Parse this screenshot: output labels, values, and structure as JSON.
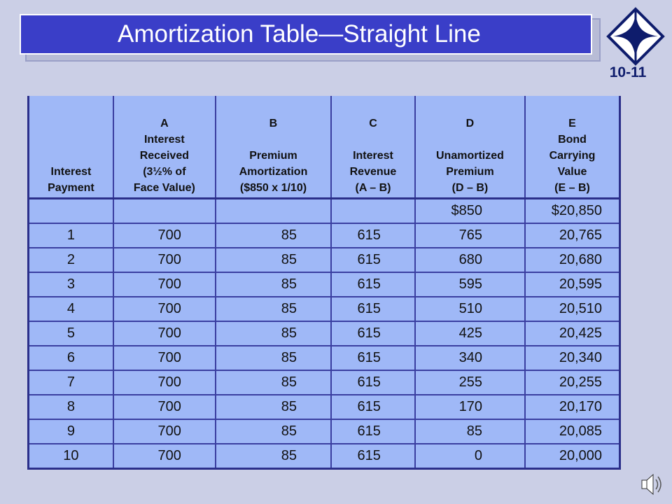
{
  "title": "Amortization Table—Straight Line",
  "slide_number": "10-11",
  "table": {
    "columns": [
      {
        "lines": [
          "",
          "",
          "",
          "Interest",
          "Payment"
        ]
      },
      {
        "lines": [
          "A",
          "Interest",
          "Received",
          "(3½% of",
          "Face Value)"
        ]
      },
      {
        "lines": [
          "B",
          "",
          "Premium",
          "Amortization",
          "($850 x 1/10)"
        ]
      },
      {
        "lines": [
          "C",
          "",
          "Interest",
          "Revenue",
          "(A – B)"
        ]
      },
      {
        "lines": [
          "D",
          "",
          "Unamortized",
          "Premium",
          "(D – B)"
        ]
      },
      {
        "lines": [
          "E",
          "Bond",
          "Carrying",
          "Value",
          "(E – B)"
        ]
      }
    ],
    "rows": [
      [
        "",
        "",
        "",
        "",
        "$850",
        "$20,850"
      ],
      [
        "1",
        "700",
        "85",
        "615",
        "765",
        "20,765"
      ],
      [
        "2",
        "700",
        "85",
        "615",
        "680",
        "20,680"
      ],
      [
        "3",
        "700",
        "85",
        "615",
        "595",
        "20,595"
      ],
      [
        "4",
        "700",
        "85",
        "615",
        "510",
        "20,510"
      ],
      [
        "5",
        "700",
        "85",
        "615",
        "425",
        "20,425"
      ],
      [
        "6",
        "700",
        "85",
        "615",
        "340",
        "20,340"
      ],
      [
        "7",
        "700",
        "85",
        "615",
        "255",
        "20,255"
      ],
      [
        "8",
        "700",
        "85",
        "615",
        "170",
        "20,170"
      ],
      [
        "9",
        "700",
        "85",
        "615",
        "85",
        "20,085"
      ],
      [
        "10",
        "700",
        "85",
        "615",
        "0",
        "20,000"
      ]
    ]
  },
  "icons": {
    "logo": "publisher-logo-icon",
    "audio": "speaker-icon"
  },
  "colors": {
    "title_bar": "#3a3ec8",
    "table_fill": "#9fb8f7",
    "table_border": "#2b2f8a",
    "background": "#cbcfe6",
    "slide_number": "#0e1c6c"
  }
}
